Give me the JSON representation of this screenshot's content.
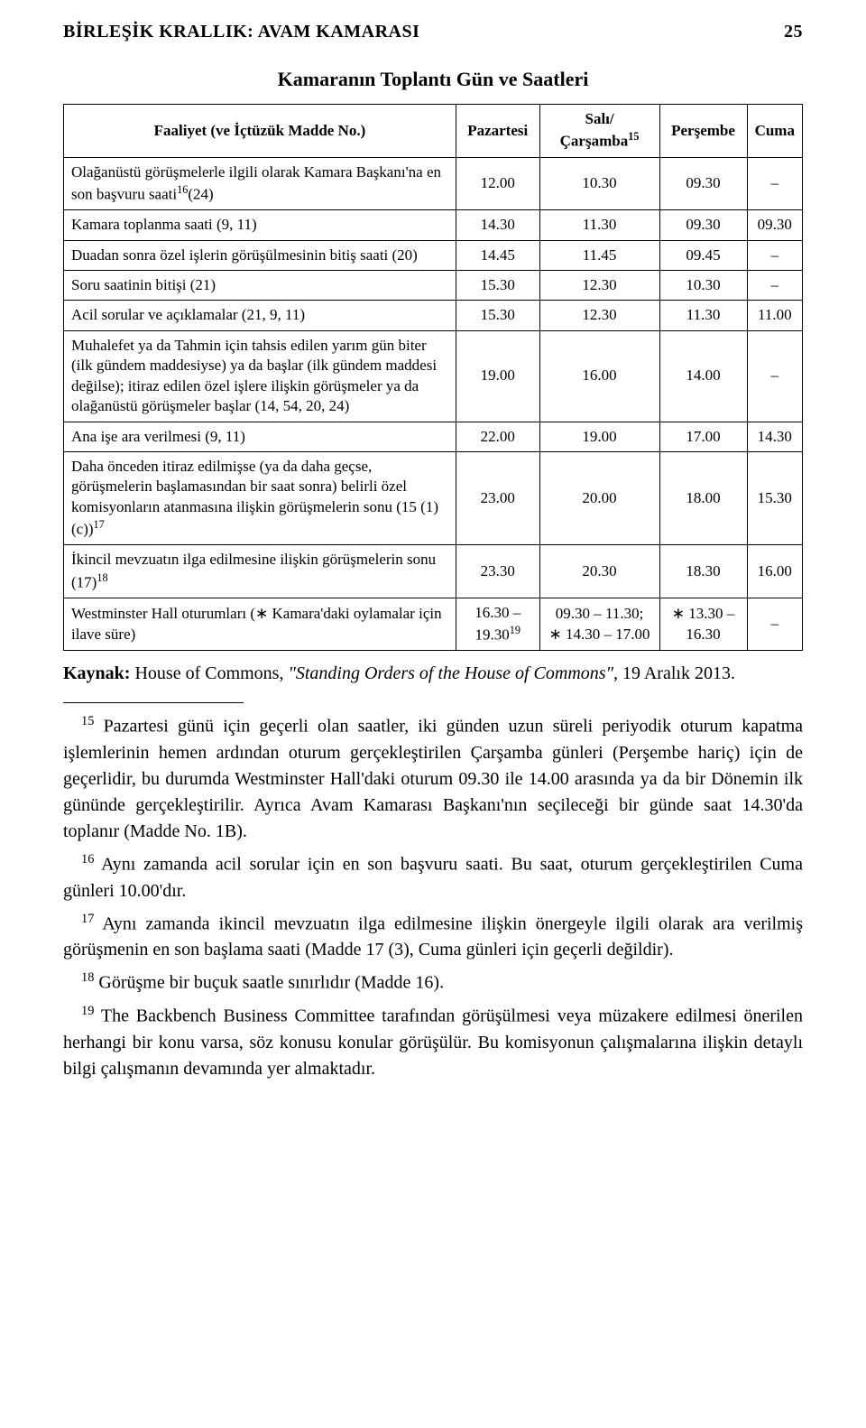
{
  "header": {
    "title": "BİRLEŞİK KRALLIK: AVAM KAMARASI",
    "page_number": "25"
  },
  "table": {
    "title": "Kamaranın Toplantı Gün ve Saatleri",
    "columns": [
      "Faaliyet (ve İçtüzük Madde No.)",
      "Pazartesi",
      "Salı/Çarşamba",
      "Perşembe",
      "Cuma"
    ],
    "col_sup": [
      "",
      "",
      "15",
      "",
      ""
    ],
    "rows": [
      {
        "label": "Olağanüstü görüşmelerle ilgili olarak Kamara Başkanı'na en son başvuru saati",
        "label_sup_after": "16",
        "label_tail": "(24)",
        "cells": [
          "12.00",
          "10.30",
          "09.30",
          "–"
        ]
      },
      {
        "label": "Kamara toplanma saati (9, 11)",
        "cells": [
          "14.30",
          "11.30",
          "09.30",
          "09.30"
        ]
      },
      {
        "label": "Duadan sonra özel işlerin görüşülmesinin bitiş saati (20)",
        "cells": [
          "14.45",
          "11.45",
          "09.45",
          "–"
        ]
      },
      {
        "label": "Soru saatinin bitişi (21)",
        "cells": [
          "15.30",
          "12.30",
          "10.30",
          "–"
        ]
      },
      {
        "label": "Acil sorular ve açıklamalar (21, 9, 11)",
        "cells": [
          "15.30",
          "12.30",
          "11.30",
          "11.00"
        ]
      },
      {
        "label": "Muhalefet ya da Tahmin için tahsis edilen yarım gün biter (ilk gündem maddesiyse) ya da başlar (ilk gündem maddesi değilse); itiraz edilen özel işlere ilişkin görüşmeler ya da olağanüstü görüşmeler başlar (14, 54, 20, 24)",
        "cells": [
          "19.00",
          "16.00",
          "14.00",
          "–"
        ]
      },
      {
        "label": "Ana işe ara verilmesi (9, 11)",
        "cells": [
          "22.00",
          "19.00",
          "17.00",
          "14.30"
        ]
      },
      {
        "label_pre": "Daha önceden itiraz edilmişse (ya da daha geçse, görüşmelerin başlamasından bir saat sonra) belirli özel komisyonların atanmasına ilişkin görüşmelerin sonu (15 (1) (c))",
        "label_sup_after": "17",
        "cells": [
          "23.00",
          "20.00",
          "18.00",
          "15.30"
        ]
      },
      {
        "label_pre": "İkincil mevzuatın ilga edilmesine ilişkin görüşmelerin sonu (17)",
        "label_sup_after": "18",
        "cells": [
          "23.30",
          "20.30",
          "18.30",
          "16.00"
        ]
      },
      {
        "label": "Westminster Hall oturumları (∗ Kamara'daki oylamalar için ilave süre)",
        "cells_html": [
          {
            "text": "16.30 – 19.30",
            "sup": "19"
          },
          {
            "text": "09.30 – 11.30; ∗ 14.30 – 17.00"
          },
          {
            "text": "∗ 13.30 – 16.30"
          },
          {
            "text": "–"
          }
        ]
      }
    ]
  },
  "source": {
    "label": "Kaynak:",
    "body_plain": " House of Commons, ",
    "body_italic": "\"Standing Orders of the House of Commons\"",
    "body_tail": ", 19 Aralık 2013."
  },
  "footnotes": [
    {
      "n": "15",
      "text": "Pazartesi günü için geçerli olan saatler, iki günden uzun süreli periyodik oturum kapatma işlemlerinin hemen ardından oturum gerçekleştirilen Çarşamba günleri (Perşembe hariç) için de geçerlidir, bu durumda Westminster Hall'daki oturum 09.30 ile 14.00 arasında ya da bir Dönemin ilk gününde gerçekleştirilir. Ayrıca Avam Kamarası Başkanı'nın seçileceği bir günde saat 14.30'da toplanır (Madde No. 1B)."
    },
    {
      "n": "16",
      "text": "Aynı zamanda acil sorular için en son başvuru saati. Bu saat, oturum gerçekleştirilen Cuma günleri 10.00'dır."
    },
    {
      "n": "17",
      "text": "Aynı zamanda ikincil mevzuatın ilga edilmesine ilişkin önergeyle ilgili olarak ara verilmiş görüşmenin en son başlama saati (Madde 17 (3), Cuma günleri için geçerli değildir)."
    },
    {
      "n": "18",
      "text": "Görüşme bir buçuk saatle sınırlıdır (Madde 16)."
    },
    {
      "n": "19",
      "text": "The Backbench Business Committee tarafından görüşülmesi veya müzakere edilmesi önerilen herhangi bir konu varsa, söz konusu konular görüşülür. Bu komisyonun çalışmalarına ilişkin detaylı bilgi çalışmanın devamında yer almaktadır."
    }
  ]
}
